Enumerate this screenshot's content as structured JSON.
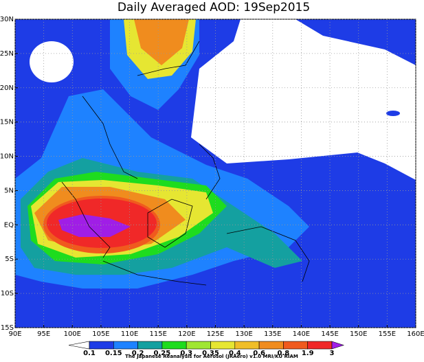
{
  "map": {
    "title": "Daily Averaged AOD: 19Sep2015",
    "xlim": [
      90,
      160
    ],
    "ylim": [
      -15,
      30
    ],
    "xticks": [
      {
        "value": 90,
        "label": "90E"
      },
      {
        "value": 95,
        "label": "95E"
      },
      {
        "value": 100,
        "label": "100E"
      },
      {
        "value": 105,
        "label": "105E"
      },
      {
        "value": 110,
        "label": "110E"
      },
      {
        "value": 115,
        "label": "115E"
      },
      {
        "value": 120,
        "label": "120E"
      },
      {
        "value": 125,
        "label": "125E"
      },
      {
        "value": 130,
        "label": "130E"
      },
      {
        "value": 135,
        "label": "135E"
      },
      {
        "value": 140,
        "label": "140E"
      },
      {
        "value": 145,
        "label": "145E"
      },
      {
        "value": 150,
        "label": "150E"
      },
      {
        "value": 155,
        "label": "155E"
      },
      {
        "value": 160,
        "label": "160E"
      }
    ],
    "yticks": [
      {
        "value": -15,
        "label": "15S"
      },
      {
        "value": -10,
        "label": "10S"
      },
      {
        "value": -5,
        "label": "5S"
      },
      {
        "value": 0,
        "label": "EQ"
      },
      {
        "value": 5,
        "label": "5N"
      },
      {
        "value": 10,
        "label": "10N"
      },
      {
        "value": 15,
        "label": "15N"
      },
      {
        "value": 20,
        "label": "20N"
      },
      {
        "value": 25,
        "label": "25N"
      },
      {
        "value": 30,
        "label": "30N"
      }
    ],
    "grid": true,
    "colorbar": {
      "levels": [
        0.1,
        0.15,
        0.2,
        0.25,
        0.3,
        0.35,
        0.4,
        0.6,
        0.8,
        1.9,
        3
      ],
      "colors": [
        "#ffffff",
        "#1e3ce6",
        "#1e82ff",
        "#14a0a0",
        "#1edc1e",
        "#a0e632",
        "#e6e632",
        "#f0be28",
        "#f08c1e",
        "#f05a1e",
        "#f02828",
        "#a01ee6"
      ]
    },
    "credit": "The Japanese Reanalysis for Aerosol (JRAero) v1.0 MRI/KU RIAM"
  }
}
